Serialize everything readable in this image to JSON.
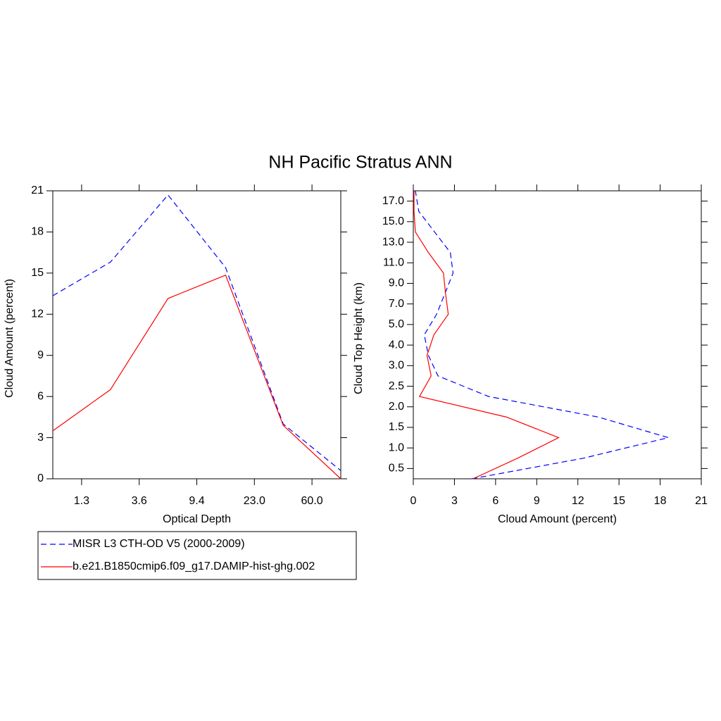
{
  "title": "NH Pacific Stratus ANN",
  "chart_data": [
    {
      "type": "line",
      "orientation": "vertical",
      "x_label": "Optical Depth",
      "y_label": "Cloud Amount (percent)",
      "x": [
        0,
        1,
        2,
        3,
        4,
        5
      ],
      "xlim": [
        0,
        5
      ],
      "xticks": [
        {
          "value": 0.5,
          "label": "1.3"
        },
        {
          "value": 1.5,
          "label": "3.6"
        },
        {
          "value": 2.5,
          "label": "9.4"
        },
        {
          "value": 3.5,
          "label": "23.0"
        },
        {
          "value": 4.5,
          "label": "60.0"
        }
      ],
      "ylim": [
        0,
        21
      ],
      "yticks": [
        0,
        3,
        6,
        9,
        12,
        15,
        18,
        21
      ],
      "series": [
        {
          "name": "MISR L3 CTH-OD V5 (2000-2009)",
          "color": "#0000ff",
          "dashed": true,
          "values": [
            13.35,
            15.8,
            20.7,
            15.4,
            4.0,
            0.6
          ]
        },
        {
          "name": "b.e21.B1850cmip6.f09_g17.DAMIP-hist-ghg.002",
          "color": "#ff0000",
          "dashed": false,
          "values": [
            3.5,
            6.5,
            13.15,
            14.85,
            3.9,
            0
          ]
        }
      ]
    },
    {
      "type": "line",
      "orientation": "horizontal",
      "x_label": "Cloud Amount (percent)",
      "y_label": "Cloud Top Height (km)",
      "y": [
        -0.5,
        0.5,
        1.5,
        2.5,
        3.5,
        4.5,
        5.5,
        6.5,
        7.5,
        8.5,
        9.5,
        10.5,
        11.5,
        12.5,
        13.5
      ],
      "ylim": [
        -0.5,
        13.5
      ],
      "yticks": [
        {
          "value": 0,
          "label": "0.5"
        },
        {
          "value": 1,
          "label": "1.0"
        },
        {
          "value": 2,
          "label": "1.5"
        },
        {
          "value": 3,
          "label": "2.0"
        },
        {
          "value": 4,
          "label": "2.5"
        },
        {
          "value": 5,
          "label": "3.0"
        },
        {
          "value": 6,
          "label": "4.0"
        },
        {
          "value": 7,
          "label": "5.0"
        },
        {
          "value": 8,
          "label": "7.0"
        },
        {
          "value": 9,
          "label": "9.0"
        },
        {
          "value": 10,
          "label": "11.0"
        },
        {
          "value": 11,
          "label": "13.0"
        },
        {
          "value": 12,
          "label": "15.0"
        },
        {
          "value": 13,
          "label": "17.0"
        }
      ],
      "xlim": [
        0,
        21
      ],
      "xticks": [
        0,
        3,
        6,
        9,
        12,
        15,
        18,
        21
      ],
      "series": [
        {
          "color": "#0000ff",
          "dashed": true,
          "values": [
            4.25,
            12.4,
            18.6,
            13.5,
            5.5,
            1.8,
            1.1,
            0.8,
            1.7,
            2.3,
            2.9,
            2.7,
            1.55,
            0.4,
            0.15
          ]
        },
        {
          "color": "#ff0000",
          "dashed": false,
          "values": [
            4.35,
            7.6,
            10.6,
            6.8,
            0.45,
            1.3,
            1.0,
            1.5,
            2.55,
            2.35,
            2.2,
            1.1,
            0.15,
            0.05,
            0.05
          ]
        }
      ]
    }
  ]
}
